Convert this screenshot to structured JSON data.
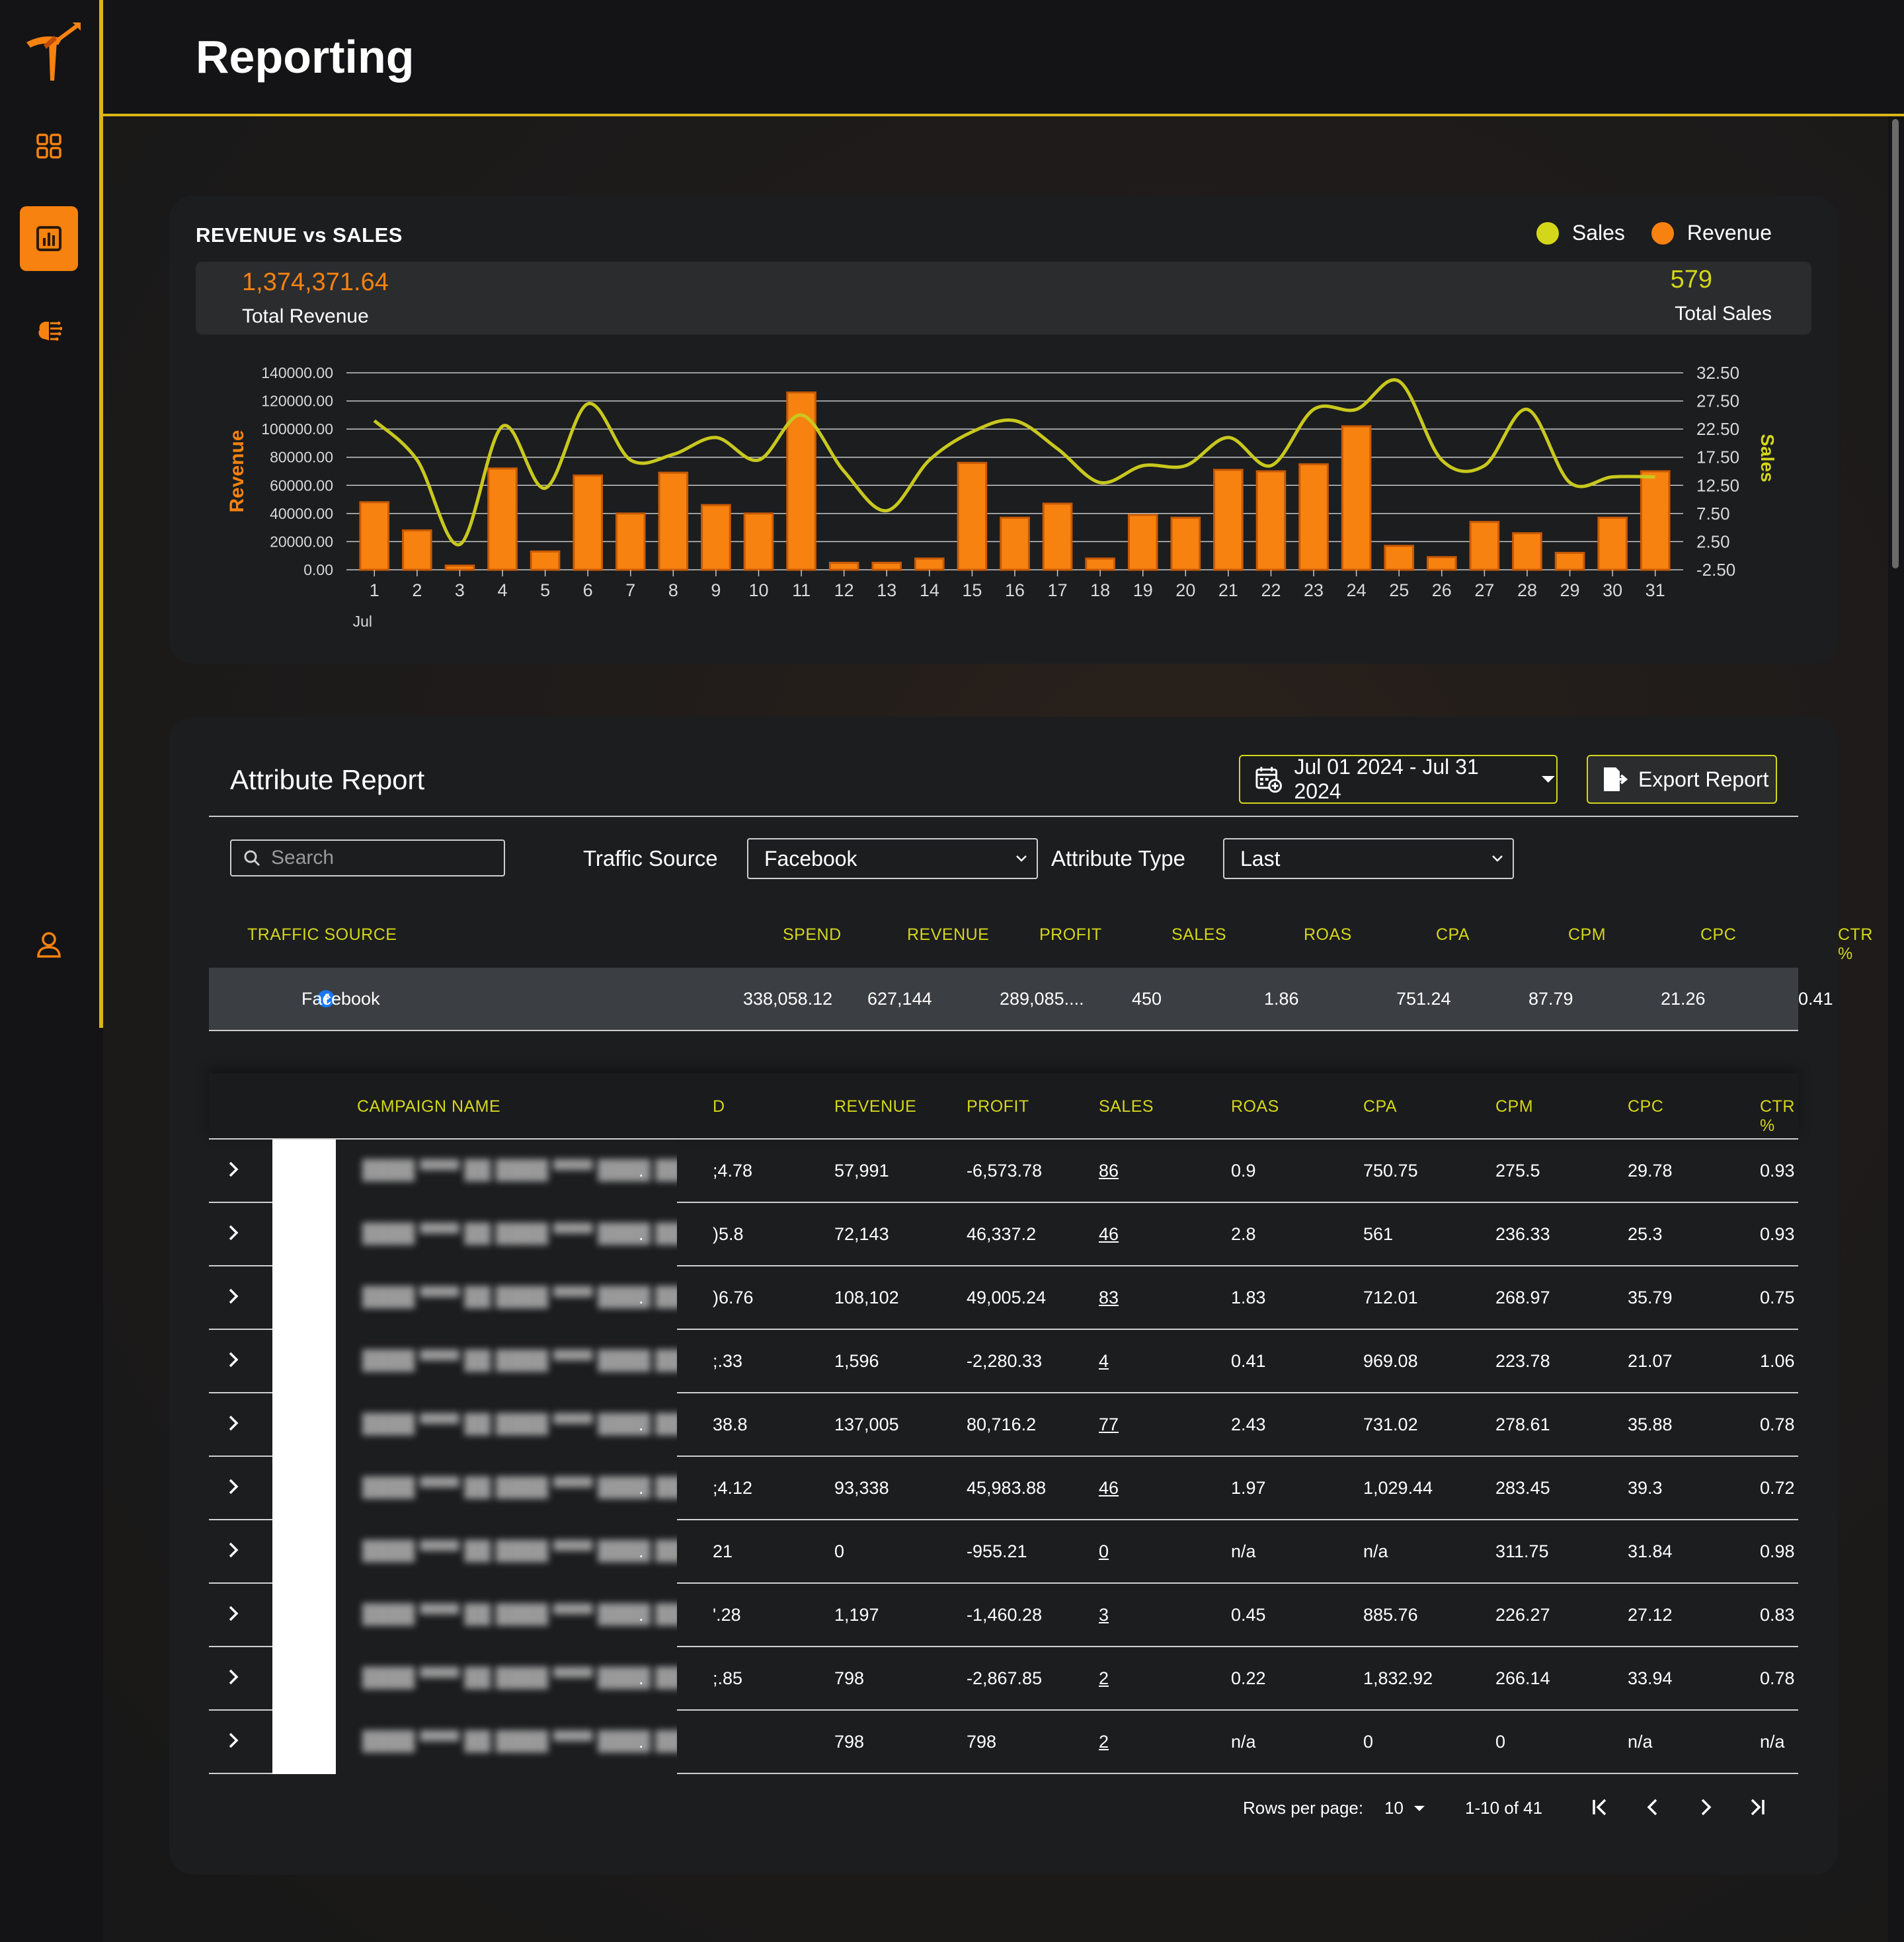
{
  "header": {
    "title": "Reporting"
  },
  "sidebar": {
    "items": [
      "dashboard-icon",
      "report-icon",
      "brain-icon",
      "user-icon"
    ],
    "active": 1
  },
  "revenue_chart": {
    "title": "REVENUE vs SALES",
    "legend": [
      {
        "label": "Sales",
        "color": "#d4d61a"
      },
      {
        "label": "Revenue",
        "color": "#f7820f"
      }
    ],
    "total_revenue_value": "1,374,371.64",
    "total_revenue_label": "Total Revenue",
    "total_sales_value": "579",
    "total_sales_label": "Total Sales"
  },
  "chart_data": {
    "type": "bar",
    "title": "REVENUE vs SALES",
    "xlabel": "Jul",
    "ylabel": "Revenue",
    "y2label": "Sales",
    "categories": [
      "1",
      "2",
      "3",
      "4",
      "5",
      "6",
      "7",
      "8",
      "9",
      "10",
      "11",
      "12",
      "13",
      "14",
      "15",
      "16",
      "17",
      "18",
      "19",
      "20",
      "21",
      "22",
      "23",
      "24",
      "25",
      "26",
      "27",
      "28",
      "29",
      "30",
      "31"
    ],
    "ylim": [
      0,
      140000
    ],
    "y2lim": [
      -2.5,
      32.5
    ],
    "y_ticks": [
      "140000.00",
      "120000.00",
      "100000.00",
      "80000.00",
      "60000.00",
      "40000.00",
      "20000.00",
      "0.00"
    ],
    "y2_ticks": [
      "32.50",
      "27.50",
      "22.50",
      "17.50",
      "12.50",
      "7.50",
      "2.50",
      "-2.50"
    ],
    "grid": true,
    "legend_position": "top-right",
    "series": [
      {
        "name": "Revenue",
        "type": "bar",
        "color": "#f7820f",
        "values": [
          48000,
          28000,
          3000,
          72000,
          13000,
          67000,
          40000,
          69000,
          46000,
          40000,
          126000,
          5000,
          5000,
          8000,
          76000,
          37000,
          47000,
          8000,
          39000,
          37000,
          71000,
          70000,
          75000,
          102000,
          17000,
          9000,
          34000,
          26000,
          12000,
          37000,
          70000
        ]
      },
      {
        "name": "Sales",
        "type": "line",
        "color": "#c8c81e",
        "values": [
          24,
          17,
          2,
          23,
          12,
          27,
          17,
          18,
          21,
          17,
          25,
          15,
          8,
          17,
          22,
          24,
          19,
          13,
          16,
          16,
          21,
          16,
          26,
          26,
          31,
          17,
          16,
          26,
          13,
          14,
          14
        ]
      }
    ]
  },
  "attribute_report": {
    "title": "Attribute Report",
    "date_range": "Jul 01 2024 - Jul 31 2024",
    "export_label": "Export Report",
    "search_placeholder": "Search",
    "traffic_source_label": "Traffic Source",
    "traffic_source_value": "Facebook",
    "attribute_type_label": "Attribute Type",
    "attribute_type_value": "Last"
  },
  "source_table": {
    "headers": [
      "TRAFFIC SOURCE",
      "SPEND",
      "REVENUE",
      "PROFIT",
      "SALES",
      "ROAS",
      "CPA",
      "CPM",
      "CPC",
      "CTR %"
    ],
    "row": [
      "Facebook",
      "338,058.12",
      "627,144",
      "289,085....",
      "450",
      "1.86",
      "751.24",
      "87.79",
      "21.26",
      "0.41"
    ]
  },
  "campaign_table": {
    "headers": [
      "CAMPAIGN NAME",
      "D",
      "REVENUE",
      "PROFIT",
      "SALES",
      "ROAS",
      "CPA",
      "CPM",
      "CPC",
      "CTR %"
    ],
    "rows": [
      [
        ".",
        ";4.78",
        "57,991",
        "-6,573.78",
        "86",
        "0.9",
        "750.75",
        "275.5",
        "29.78",
        "0.93"
      ],
      [
        ".",
        ")5.8",
        "72,143",
        "46,337.2",
        "46",
        "2.8",
        "561",
        "236.33",
        "25.3",
        "0.93"
      ],
      [
        ".",
        ")6.76",
        "108,102",
        "49,005.24",
        "83",
        "1.83",
        "712.01",
        "268.97",
        "35.79",
        "0.75"
      ],
      [
        "",
        ";.33",
        "1,596",
        "-2,280.33",
        "4",
        "0.41",
        "969.08",
        "223.78",
        "21.07",
        "1.06"
      ],
      [
        ".",
        "38.8",
        "137,005",
        "80,716.2",
        "77",
        "2.43",
        "731.02",
        "278.61",
        "35.88",
        "0.78"
      ],
      [
        ".",
        ";4.12",
        "93,338",
        "45,983.88",
        "46",
        "1.97",
        "1,029.44",
        "283.45",
        "39.3",
        "0.72"
      ],
      [
        ".",
        "21",
        "0",
        "-955.21",
        "0",
        "n/a",
        "n/a",
        "311.75",
        "31.84",
        "0.98"
      ],
      [
        ".",
        "'.28",
        "1,197",
        "-1,460.28",
        "3",
        "0.45",
        "885.76",
        "226.27",
        "27.12",
        "0.83"
      ],
      [
        ".",
        ";.85",
        "798",
        "-2,867.85",
        "2",
        "0.22",
        "1,832.92",
        "266.14",
        "33.94",
        "0.78"
      ],
      [
        ".",
        "",
        "798",
        "798",
        "2",
        "n/a",
        "0",
        "0",
        "n/a",
        "n/a"
      ]
    ]
  },
  "pagination": {
    "rows_per_page_label": "Rows per page:",
    "rows_per_page_value": "10",
    "range": "1-10 of 41"
  }
}
